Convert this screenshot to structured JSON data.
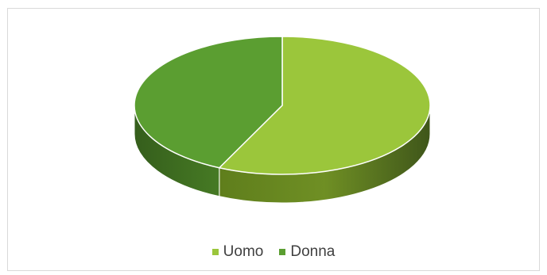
{
  "chart_data": {
    "type": "pie",
    "title": "",
    "categories": [
      "Uomo",
      "Donna"
    ],
    "values": [
      57,
      43
    ],
    "colors": [
      "#9bc63b",
      "#5b9e31"
    ],
    "side_colors": [
      "#6e8f23",
      "#3e6e20"
    ],
    "style": "3d",
    "legend_position": "bottom"
  }
}
